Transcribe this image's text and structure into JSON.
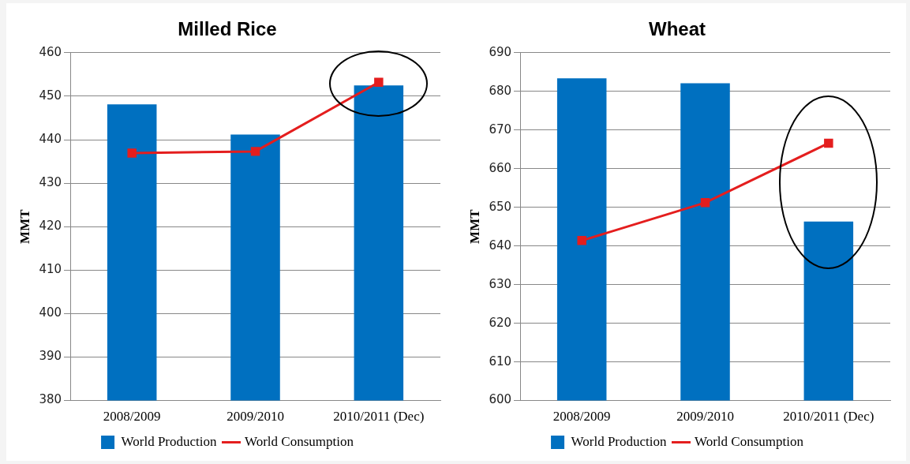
{
  "chart_data": [
    {
      "type": "bar",
      "title": "Milled Rice",
      "ylabel": "MMT",
      "categories": [
        "2008/2009",
        "2009/2010",
        "2010/2011 (Dec)"
      ],
      "ylim": [
        380,
        460
      ],
      "yticks": [
        380,
        390,
        400,
        410,
        420,
        430,
        440,
        450,
        460
      ],
      "grid": "y",
      "legend": "bottom",
      "series": [
        {
          "name": "World Production",
          "color": "#0070c0",
          "values": [
            448.1,
            441.2,
            452.5
          ]
        },
        {
          "name": "World Consumption",
          "type": "line",
          "color": "#e41e1e",
          "marker": "square",
          "values": [
            436.9,
            437.3,
            453.2
          ]
        }
      ]
    },
    {
      "type": "bar",
      "title": "Wheat",
      "ylabel": "MMT",
      "categories": [
        "2008/2009",
        "2009/2010",
        "2010/2011 (Dec)"
      ],
      "ylim": [
        600,
        690
      ],
      "yticks": [
        600,
        610,
        620,
        630,
        640,
        650,
        660,
        670,
        680,
        690
      ],
      "grid": "y",
      "legend": "bottom",
      "series": [
        {
          "name": "World Production",
          "color": "#0070c0",
          "values": [
            683.4,
            682.1,
            646.3
          ]
        },
        {
          "name": "World Consumption",
          "type": "line",
          "color": "#e41e1e",
          "marker": "square",
          "values": [
            641.4,
            651.2,
            666.6
          ]
        }
      ]
    }
  ]
}
